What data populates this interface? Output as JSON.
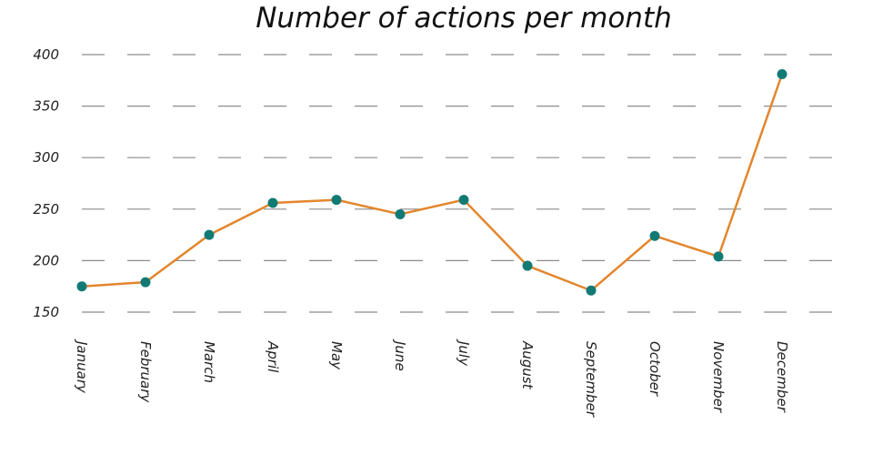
{
  "chart_data": {
    "type": "line",
    "title": "Number of actions per month",
    "xlabel": "",
    "ylabel": "",
    "categories": [
      "January",
      "February",
      "March",
      "April",
      "May",
      "June",
      "July",
      "August",
      "September",
      "October",
      "November",
      "December"
    ],
    "series": [
      {
        "values": [
          175,
          179,
          225,
          256,
          259,
          245,
          259,
          195,
          171,
          224,
          204,
          381
        ]
      }
    ],
    "ylim": [
      150,
      400
    ],
    "yticks": [
      150,
      200,
      250,
      300,
      350,
      400
    ],
    "grid": true,
    "line_color": "#e3862d",
    "marker_color": "#127a74"
  }
}
